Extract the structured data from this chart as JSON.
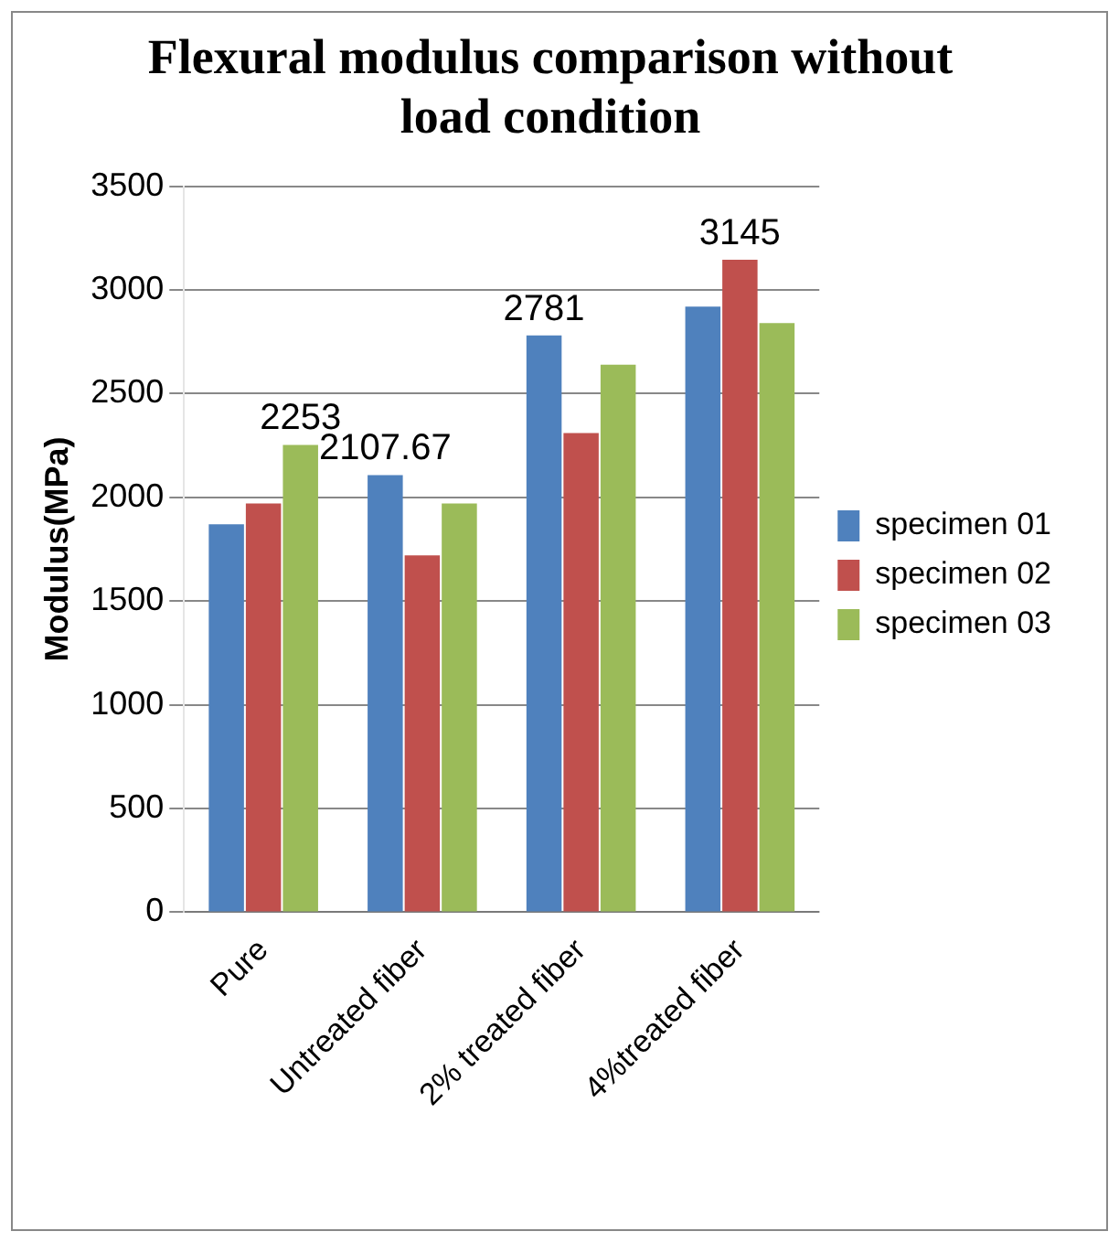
{
  "chart_data": {
    "type": "bar",
    "title": "Flexural modulus comparison without load condition",
    "ylabel": "Modulus(MPa)",
    "categories": [
      "Pure",
      "Untreated fiber",
      "2% treated fiber",
      "4%treated fiber"
    ],
    "series": [
      {
        "name": "specimen 01",
        "color": "#4f81bd",
        "values": [
          1870,
          2107.67,
          2781,
          2920
        ],
        "value_labels": [
          null,
          "2107.67",
          "2781",
          null
        ]
      },
      {
        "name": "specimen 02",
        "color": "#c0504d",
        "values": [
          1970,
          1720,
          2310,
          3145
        ],
        "value_labels": [
          null,
          null,
          null,
          "3145"
        ]
      },
      {
        "name": "specimen 03",
        "color": "#9bbb59",
        "values": [
          2253,
          1970,
          2640,
          2840
        ],
        "value_labels": [
          "2253",
          null,
          null,
          null
        ]
      }
    ],
    "ylim": [
      0,
      3500
    ],
    "yticks": [
      0,
      500,
      1000,
      1500,
      2000,
      2500,
      3000,
      3500
    ],
    "grid": "y",
    "legend": "right"
  }
}
